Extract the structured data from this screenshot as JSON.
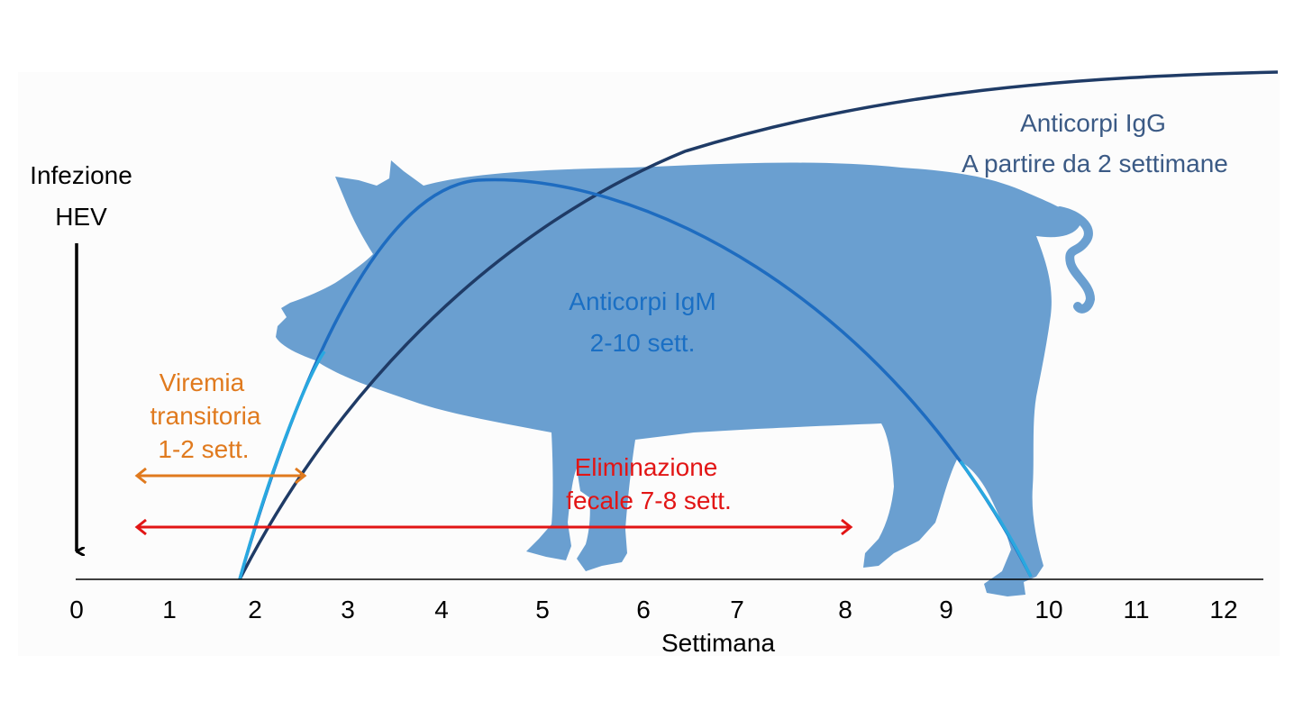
{
  "infection": {
    "line1": "Infezione",
    "line2": "HEV"
  },
  "x_axis": {
    "label": "Settimana",
    "ticks": [
      "0",
      "1",
      "2",
      "3",
      "4",
      "5",
      "6",
      "7",
      "8",
      "9",
      "10",
      "11",
      "12"
    ]
  },
  "igg": {
    "line1": "Anticorpi IgG",
    "line2": "A partire da 2 settimane",
    "color": "#3b5a85"
  },
  "igm": {
    "line1": "Anticorpi IgM",
    "line2": "2-10 sett.",
    "color": "#1a6fc4"
  },
  "viremia": {
    "line1": "Viremia",
    "line2": "transitoria",
    "line3": "1-2 sett.",
    "color": "#e07a1e"
  },
  "fecal": {
    "line1": "Eliminazione",
    "line2": "fecale 7-8 sett.",
    "color": "#e21515"
  },
  "colors": {
    "pig": "#6a9fd0",
    "axis": "#000000",
    "igg_curve": "#1f3b66",
    "igm_curve": "#1e6cc0",
    "igm_curve_light": "#29a8e0"
  }
}
